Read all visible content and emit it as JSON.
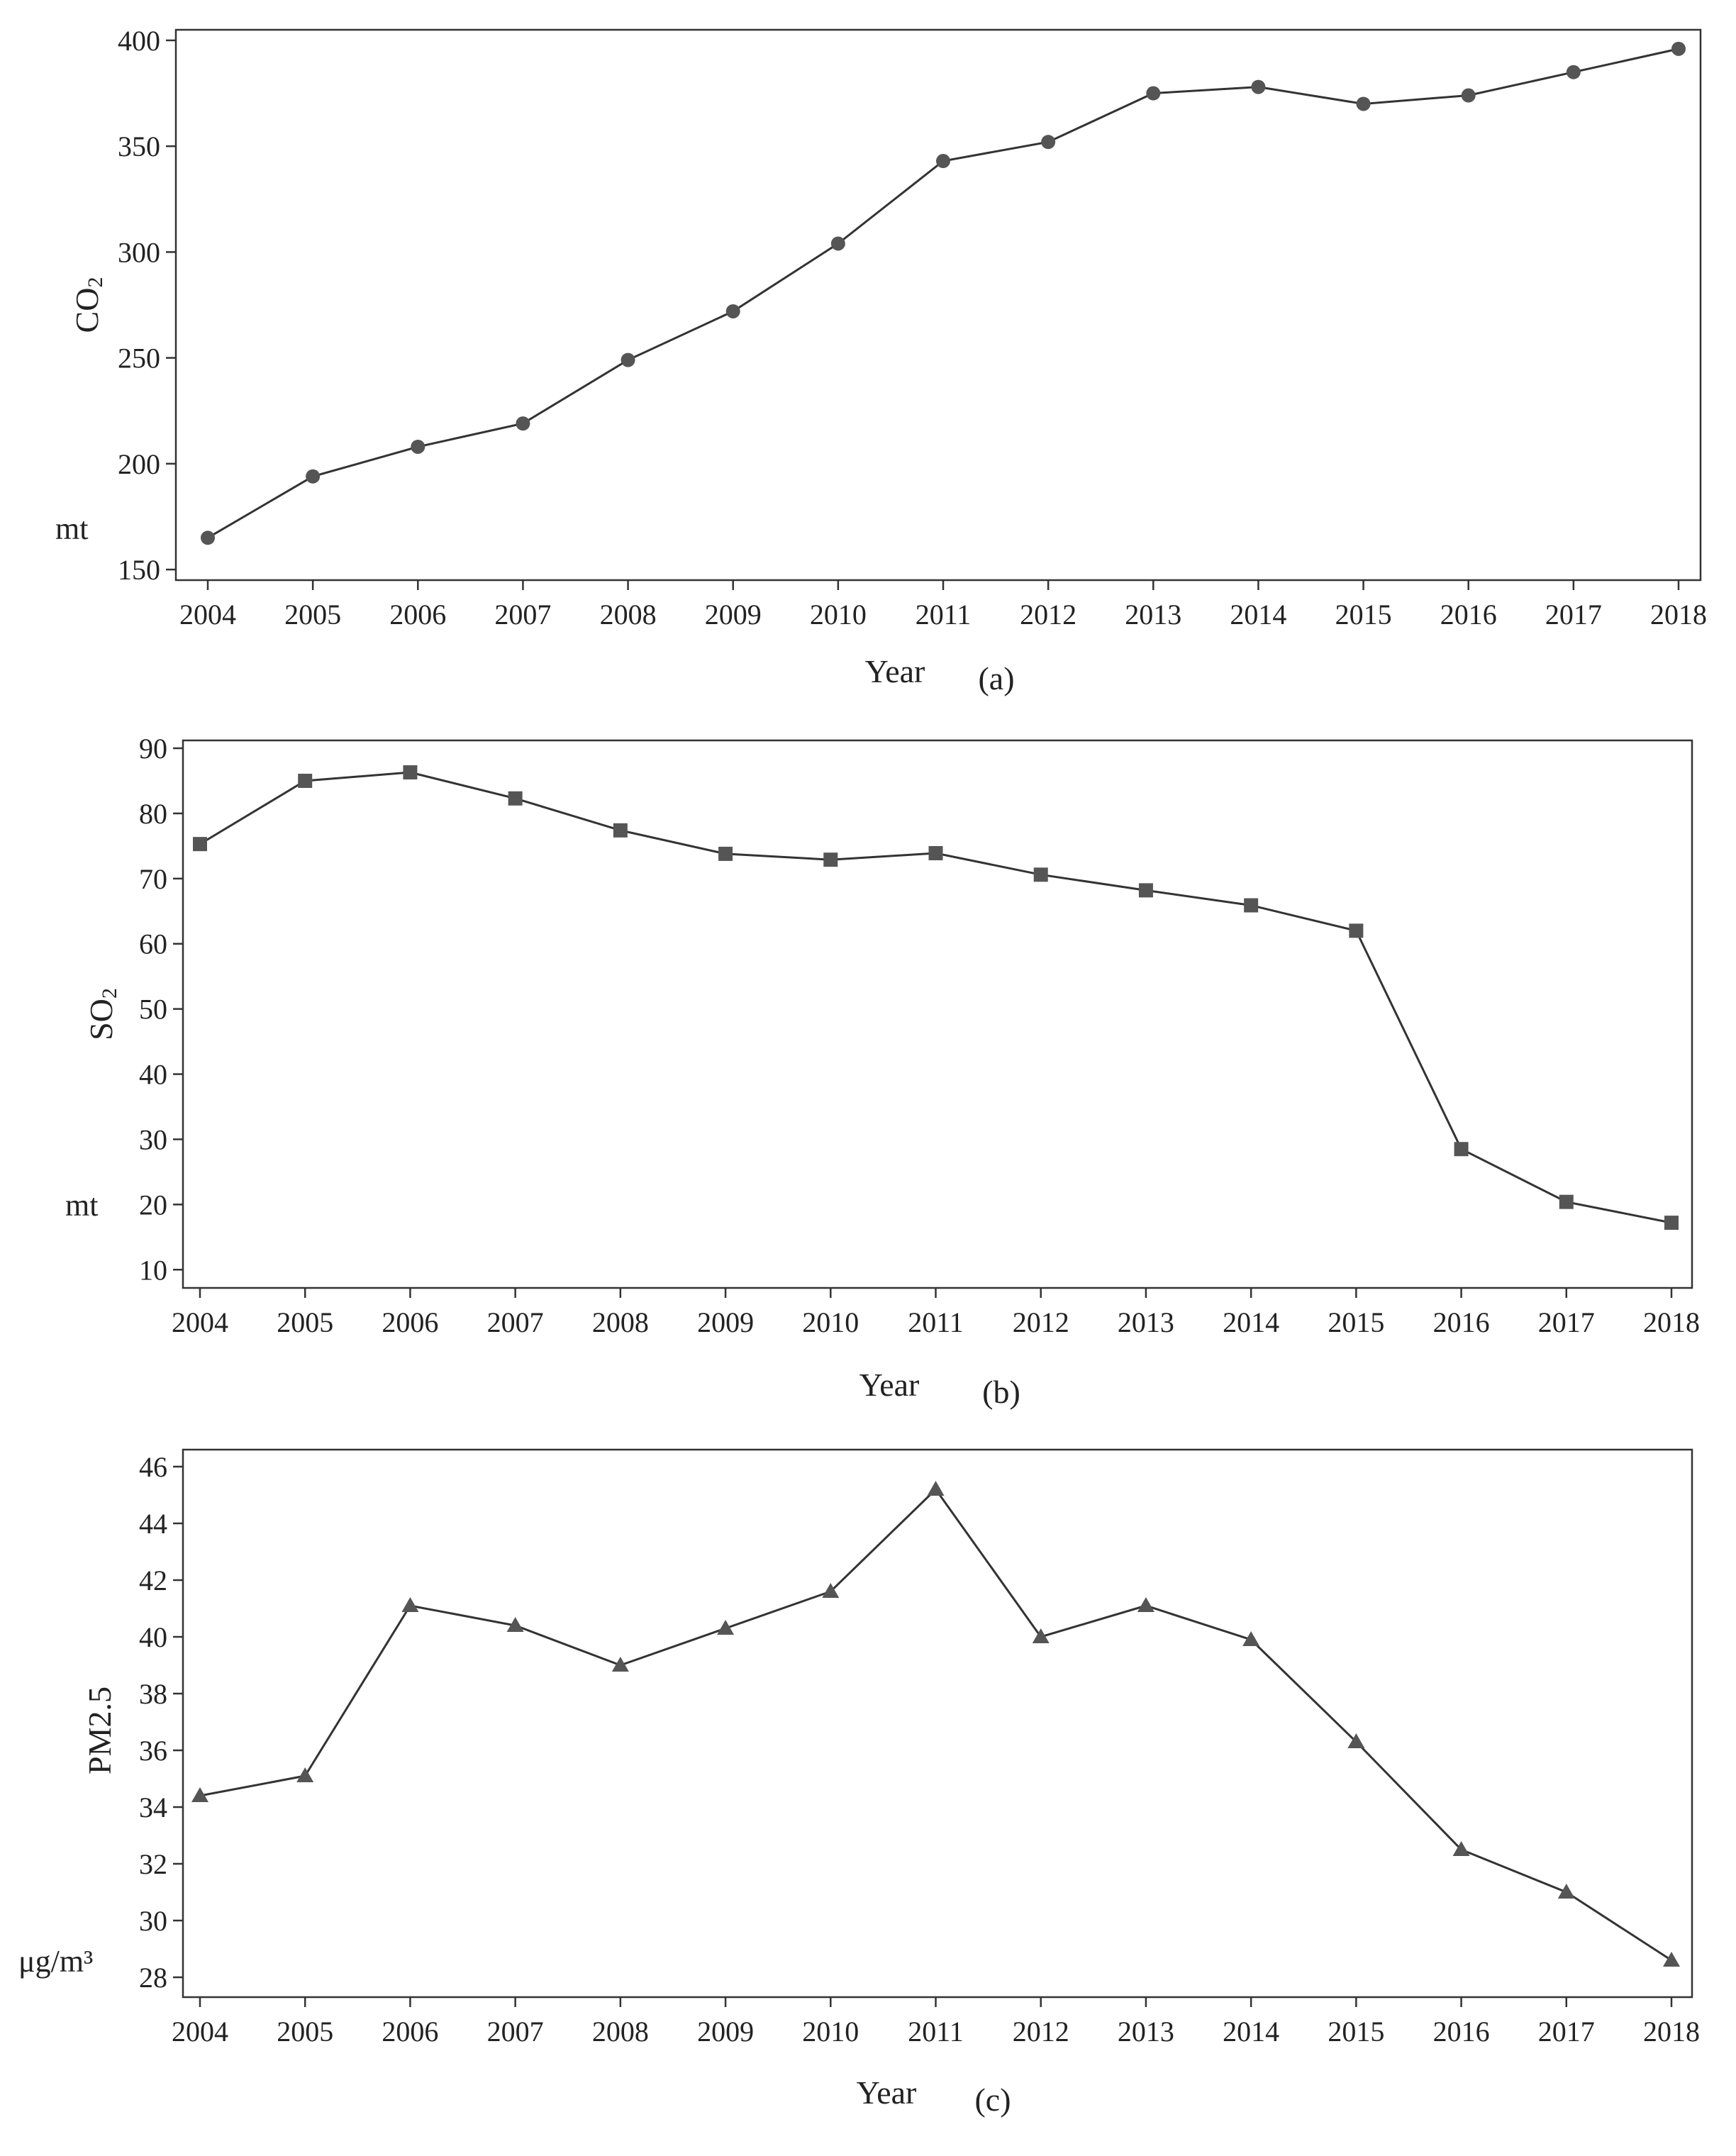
{
  "figure": {
    "line_color": "#333333",
    "marker_color": "#555555",
    "frame_color": "#333333"
  },
  "chart_data": [
    {
      "type": "line",
      "panel_label": "(a)",
      "xlabel": "Year",
      "ylabel": "CO₂",
      "ylabel_main": "CO",
      "ylabel_sub": "2",
      "unit": "mt",
      "marker": "circle",
      "categories": [
        "2004",
        "2005",
        "2006",
        "2007",
        "2008",
        "2009",
        "2010",
        "2011",
        "2012",
        "2013",
        "2014",
        "2015",
        "2016",
        "2017",
        "2018"
      ],
      "series": [
        {
          "name": "CO2",
          "values": [
            165,
            194,
            208,
            219,
            249,
            272,
            304,
            343,
            352,
            375,
            378,
            370,
            374,
            385,
            396
          ]
        }
      ],
      "ylim": [
        145,
        405
      ],
      "yticks": [
        150,
        200,
        250,
        300,
        350,
        400
      ],
      "ytick_labels": [
        "150",
        "200",
        "250",
        "300",
        "350",
        "400"
      ]
    },
    {
      "type": "line",
      "panel_label": "(b)",
      "xlabel": "Year",
      "ylabel": "SO₂",
      "ylabel_main": "SO",
      "ylabel_sub": "2",
      "unit": "mt",
      "marker": "square",
      "categories": [
        "2004",
        "2005",
        "2006",
        "2007",
        "2008",
        "2009",
        "2010",
        "2011",
        "2012",
        "2013",
        "2014",
        "2015",
        "2016",
        "2017",
        "2018"
      ],
      "series": [
        {
          "name": "SO2",
          "values": [
            75.3,
            85.0,
            86.3,
            82.3,
            77.4,
            73.8,
            72.9,
            73.9,
            70.6,
            68.2,
            65.9,
            62.0,
            28.5,
            20.4,
            17.2
          ]
        }
      ],
      "ylim": [
        7.2,
        91.2
      ],
      "yticks": [
        10,
        20,
        30,
        40,
        50,
        60,
        70,
        80,
        90
      ],
      "ytick_labels": [
        "10",
        "20",
        "30",
        "40",
        "50",
        "60",
        "70",
        "80",
        "90"
      ]
    },
    {
      "type": "line",
      "panel_label": "(c)",
      "xlabel": "Year",
      "ylabel": "PM2.5",
      "ylabel_main": "PM2.5",
      "ylabel_sub": "",
      "unit": "μg/m³",
      "marker": "triangle",
      "categories": [
        "2004",
        "2005",
        "2006",
        "2007",
        "2008",
        "2009",
        "2010",
        "2011",
        "2012",
        "2013",
        "2014",
        "2015",
        "2016",
        "2017",
        "2018"
      ],
      "series": [
        {
          "name": "PM2.5",
          "values": [
            34.4,
            35.1,
            41.1,
            40.4,
            39.0,
            40.3,
            41.6,
            45.2,
            40.0,
            41.1,
            39.9,
            36.3,
            32.5,
            31.0,
            28.6
          ]
        }
      ],
      "ylim": [
        27.3,
        46.6
      ],
      "yticks": [
        28,
        30,
        32,
        34,
        36,
        38,
        40,
        42,
        44,
        46
      ],
      "ytick_labels": [
        "28",
        "30",
        "32",
        "34",
        "36",
        "38",
        "40",
        "42",
        "44",
        "46"
      ]
    }
  ]
}
